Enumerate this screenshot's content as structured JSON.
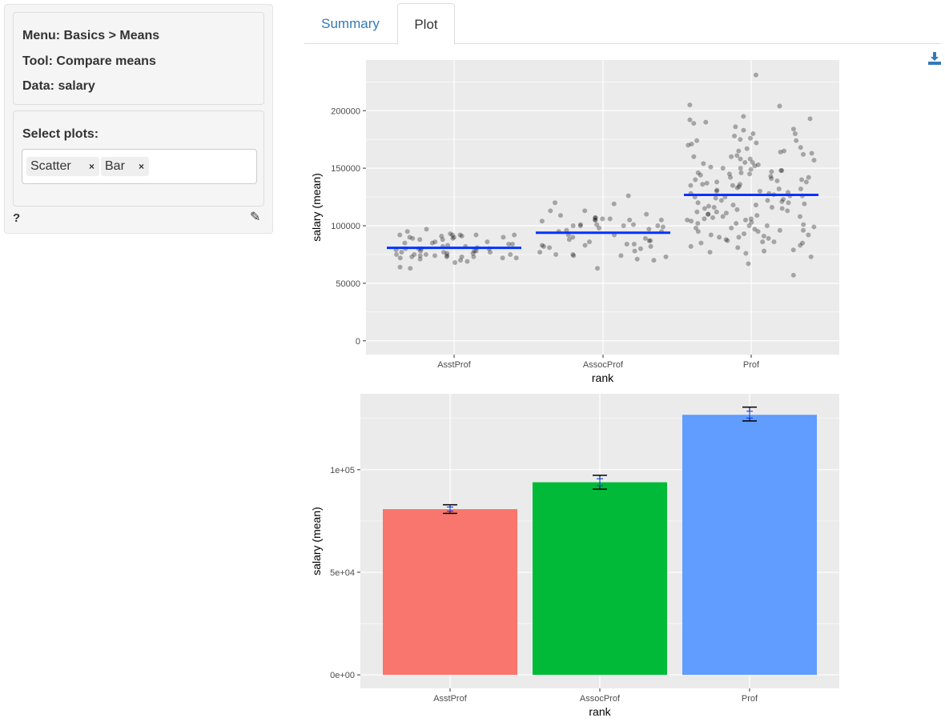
{
  "sidebar": {
    "menu": "Menu: Basics > Means",
    "tool": "Tool: Compare means",
    "data": "Data: salary",
    "select_label": "Select plots:",
    "chips": [
      "Scatter",
      "Bar"
    ],
    "chip_remove": "×",
    "help": "?"
  },
  "tabs": [
    {
      "label": "Summary",
      "active": false
    },
    {
      "label": "Plot",
      "active": true
    }
  ],
  "icons": {
    "download": "download-icon",
    "edit": "edit-icon"
  },
  "chart_data": [
    {
      "type": "scatter",
      "xlabel": "rank",
      "ylabel": "salary (mean)",
      "categories": [
        "AsstProf",
        "AssocProf",
        "Prof"
      ],
      "yticks": [
        0,
        50000,
        100000,
        150000,
        200000
      ],
      "ytick_labels": [
        "0",
        "50000",
        "100000",
        "150000",
        "200000"
      ],
      "ylim": [
        -12000,
        244000
      ],
      "grid": true,
      "point_color": "#000000",
      "mean_line_color": "#0033ff",
      "means": [
        80776,
        93876,
        126772
      ],
      "points": [
        [
          89000,
          91000,
          85000,
          80000,
          73000,
          68000,
          64000,
          72000,
          82000,
          88000,
          97000,
          77000,
          78000,
          92000,
          90000,
          71000,
          78000,
          63000,
          73000,
          92000,
          89000,
          75000,
          75000,
          92000,
          80000,
          74000,
          84000,
          75000,
          77000,
          70000,
          92000,
          75000,
          73000,
          72000,
          76000,
          88000,
          92000,
          85000,
          90000,
          80000,
          86000,
          74000,
          72000,
          84000,
          78000,
          90000,
          93000,
          74000,
          69000,
          91000,
          86000,
          73000,
          95000,
          80000,
          83000,
          77000,
          79000,
          82000,
          81000,
          76000
        ],
        [
          105000,
          101000,
          105000,
          106000,
          107000,
          110000,
          101000,
          105000,
          90000,
          88000,
          84000,
          75000,
          74000,
          71000,
          97000,
          99000,
          100000,
          87000,
          78000,
          74000,
          106000,
          104000,
          100000,
          113000,
          96000,
          86000,
          84000,
          101000,
          100000,
          95000,
          77000,
          83000,
          119000,
          107000,
          113000,
          73000,
          63000,
          82000,
          92000,
          98000,
          120000,
          80000,
          70000,
          75000,
          83000,
          95000,
          105000,
          126000,
          100000,
          87000,
          92000,
          89000,
          109000,
          82000,
          81000
        ],
        [
          205000,
          231000,
          184000,
          180000,
          190000,
          176000,
          160000,
          150000,
          145000,
          140000,
          135000,
          130000,
          125000,
          120000,
          115000,
          110000,
          105000,
          100000,
          95000,
          90000,
          85000,
          67000,
          175000,
          170000,
          165000,
          155000,
          148000,
          142000,
          138000,
          132000,
          128000,
          122000,
          118000,
          112000,
          108000,
          102000,
          98000,
          92000,
          88000,
          82000,
          78000,
          195000,
          186000,
          172000,
          162000,
          152000,
          146000,
          136000,
          126000,
          116000,
          106000,
          96000,
          86000,
          76000,
          73000,
          168000,
          158000,
          149000,
          139000,
          129000,
          119000,
          109000,
          99000,
          89000,
          79000,
          183000,
          174000,
          163000,
          153000,
          143000,
          133000,
          123000,
          113000,
          103000,
          93000,
          83000,
          204000,
          189000,
          178000,
          167000,
          157000,
          147000,
          137000,
          127000,
          117000,
          107000,
          97000,
          87000,
          192000,
          193000,
          180000,
          171000,
          161000,
          151000,
          141000,
          131000,
          121000,
          111000,
          101000,
          91000,
          81000,
          57000,
          77000,
          160000,
          150000,
          140000,
          130000,
          120000,
          110000,
          100000,
          90000,
          165000,
          155000,
          145000,
          135000,
          125000,
          115000,
          105000,
          95000,
          85000,
          144000,
          134000,
          124000,
          114000,
          104000,
          154000,
          164000,
          174000,
          128000,
          118000,
          108000,
          98000,
          138000,
          148000,
          158000,
          112000,
          122000,
          132000,
          142000,
          102000,
          92000,
          126000,
          136000,
          146000,
          116000,
          106000,
          96000,
          86000
        ]
      ]
    },
    {
      "type": "bar",
      "xlabel": "rank",
      "ylabel": "salary (mean)",
      "categories": [
        "AsstProf",
        "AssocProf",
        "Prof"
      ],
      "values": [
        80776,
        93876,
        126772
      ],
      "error_bars": [
        [
          78700,
          82900
        ],
        [
          90500,
          97300
        ],
        [
          123800,
          130500
        ]
      ],
      "inner_error_bars": [
        [
          79800,
          81800
        ],
        [
          92200,
          95600
        ],
        [
          125200,
          128500
        ]
      ],
      "colors": [
        "#F8766D",
        "#00BA38",
        "#619CFF"
      ],
      "yticks": [
        0,
        50000,
        100000
      ],
      "ytick_labels": [
        "0e+00",
        "5e+04",
        "1e+05"
      ],
      "ylim": [
        -6600,
        137000
      ],
      "grid": true
    }
  ]
}
